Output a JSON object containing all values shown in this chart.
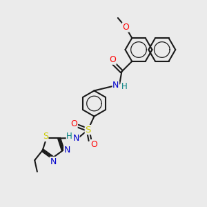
{
  "bg": "#ebebeb",
  "bc": "#1a1a1a",
  "bw": 1.5,
  "colors": {
    "O": "#ff0000",
    "N": "#0000cc",
    "S": "#cccc00",
    "H": "#008080"
  },
  "figsize": [
    3.0,
    3.0
  ],
  "dpi": 100
}
